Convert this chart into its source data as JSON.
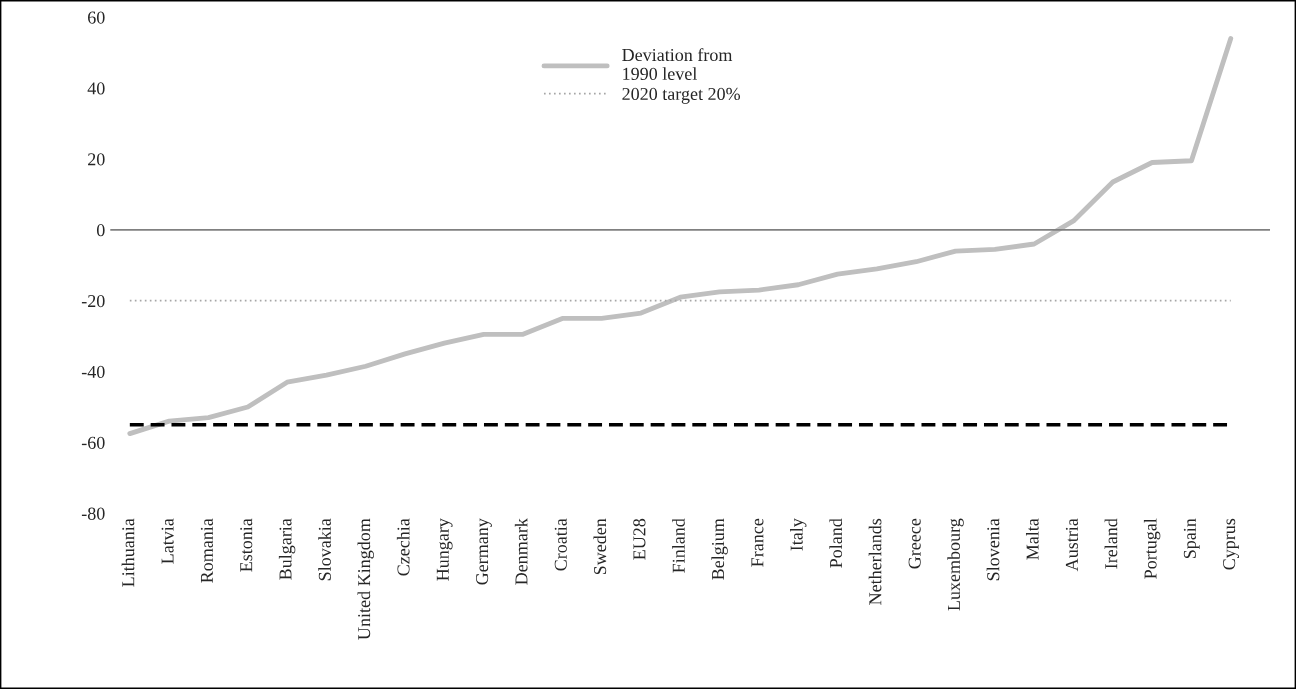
{
  "chart_data": {
    "type": "line",
    "categories": [
      "Lithuania",
      "Latvia",
      "Romania",
      "Estonia",
      "Bulgaria",
      "Slovakia",
      "United Kingdom",
      "Czechia",
      "Hungary",
      "Germany",
      "Denmark",
      "Croatia",
      "Sweden",
      "EU28",
      "Finland",
      "Belgium",
      "France",
      "Italy",
      "Poland",
      "Netherlands",
      "Greece",
      "Luxembourg",
      "Slovenia",
      "Malta",
      "Austria",
      "Ireland",
      "Portugal",
      "Spain",
      "Cyprus"
    ],
    "series": [
      {
        "name": "Deviation from\n1990 level",
        "color": "#bfbfbf",
        "values": [
          -57.5,
          -54,
          -53,
          -50,
          -43,
          -41,
          -38.5,
          -35,
          -32,
          -29.5,
          -29.5,
          -25,
          -25,
          -23.5,
          -19,
          -17.5,
          -17,
          -15.5,
          -12.5,
          -11,
          -9,
          -6,
          -5.5,
          -4,
          2.5,
          13.5,
          19,
          19.5,
          54
        ]
      }
    ],
    "ref_lines": [
      {
        "axis": "y",
        "value": 0,
        "color": "#808080",
        "line_style": "solid"
      },
      {
        "axis": "y",
        "value": -20,
        "label": "2020 target 20%",
        "color": "#a6a6a6",
        "line_style": "dotted"
      },
      {
        "axis": "y",
        "value": -55,
        "color": "#000000",
        "line_style": "dashed"
      }
    ],
    "ylim": [
      -80,
      60
    ],
    "yticks": [
      -80,
      -60,
      -40,
      -20,
      0,
      20,
      40,
      60
    ],
    "grid": false,
    "legend": "top",
    "line_style": "solid",
    "marker": "none"
  }
}
